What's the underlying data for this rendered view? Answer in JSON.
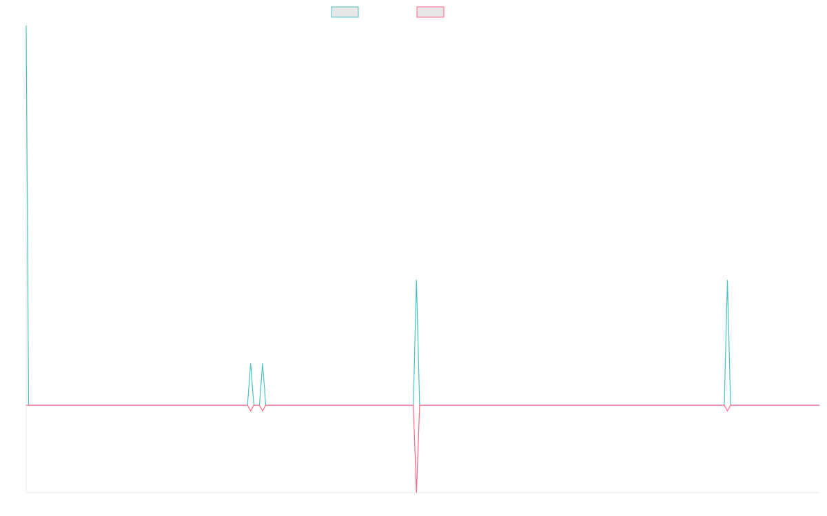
{
  "chart_data": {
    "type": "line",
    "x": [
      0,
      0.3,
      27.9,
      28.3,
      28.7,
      29.4,
      29.8,
      30.2,
      48.8,
      49.2,
      49.6,
      88.0,
      88.4,
      88.8,
      100
    ],
    "series": [
      {
        "values": [
          10.0,
          0,
          0,
          1.1,
          0,
          0,
          1.1,
          0,
          0,
          3.3,
          0,
          0,
          3.3,
          0,
          0
        ],
        "color": "#4bc0c0"
      },
      {
        "values": [
          0,
          0,
          0,
          -0.15,
          0,
          0,
          -0.15,
          0,
          0,
          -2.3,
          0,
          0,
          -0.15,
          0,
          0
        ],
        "color": "#ff6384"
      }
    ],
    "xlim": [
      0,
      100
    ],
    "ylim": [
      -2.3,
      10
    ],
    "grid": false,
    "legend": {
      "position": "top"
    },
    "xlabel": "",
    "ylabel": ""
  }
}
